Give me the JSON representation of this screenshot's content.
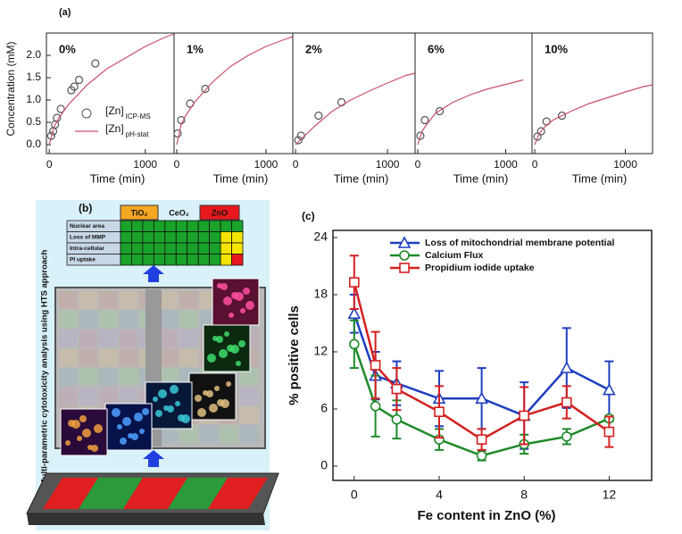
{
  "panel_labels": {
    "a": "(a)",
    "b": "(b)",
    "c": "(c)"
  },
  "chart_data": [
    {
      "type": "line",
      "label": "0%",
      "xlabel": "Time (min)",
      "ylabel": "Concentration (mM)",
      "xlim": [
        -30,
        1300
      ],
      "ylim": [
        -0.2,
        2.5
      ],
      "xticks": [
        0,
        1000
      ],
      "yticks": [
        0.0,
        0.5,
        1.0,
        1.5,
        2.0
      ],
      "legend": true,
      "series": [
        {
          "type": "scatter",
          "name": "[Zn]",
          "name_sub": "ICP-MS",
          "color": "#555555",
          "x": [
            20,
            40,
            60,
            80,
            120,
            230,
            260,
            310,
            480
          ],
          "values": [
            0.2,
            0.3,
            0.45,
            0.6,
            0.8,
            1.22,
            1.3,
            1.45,
            1.82
          ]
        },
        {
          "type": "line",
          "name": "[Zn]",
          "name_sub": "pH-stat",
          "color": "#c8506a",
          "x": [
            0,
            50,
            100,
            200,
            400,
            600,
            800,
            1000,
            1200,
            1300
          ],
          "values": [
            0,
            0.4,
            0.6,
            0.9,
            1.35,
            1.7,
            1.95,
            2.2,
            2.4,
            2.48
          ]
        }
      ]
    },
    {
      "type": "line",
      "label": "1%",
      "xlabel": "Time (min)",
      "xlim": [
        -30,
        1300
      ],
      "ylim": [
        -0.2,
        2.5
      ],
      "xticks": [
        0,
        1000
      ],
      "series": [
        {
          "type": "scatter",
          "color": "#555555",
          "x": [
            10,
            50,
            150,
            320
          ],
          "values": [
            0.25,
            0.55,
            0.92,
            1.25
          ]
        },
        {
          "type": "line",
          "color": "#c8506a",
          "x": [
            0,
            50,
            100,
            200,
            400,
            600,
            800,
            1000,
            1200,
            1300
          ],
          "values": [
            0,
            0.45,
            0.65,
            0.95,
            1.4,
            1.75,
            2.0,
            2.2,
            2.35,
            2.42
          ]
        }
      ]
    },
    {
      "type": "line",
      "label": "2%",
      "xlabel": "Time (min)",
      "xlim": [
        -30,
        1300
      ],
      "ylim": [
        -0.2,
        2.5
      ],
      "xticks": [
        0,
        1000
      ],
      "series": [
        {
          "type": "scatter",
          "color": "#555555",
          "x": [
            30,
            60,
            250,
            500
          ],
          "values": [
            0.1,
            0.2,
            0.65,
            0.95
          ]
        },
        {
          "type": "line",
          "color": "#c8506a",
          "x": [
            0,
            50,
            100,
            200,
            400,
            600,
            800,
            1000,
            1200,
            1300
          ],
          "values": [
            0,
            0.1,
            0.2,
            0.4,
            0.75,
            1.0,
            1.2,
            1.38,
            1.55,
            1.6
          ]
        }
      ]
    },
    {
      "type": "line",
      "label": "6%",
      "xlabel": "Time (min)",
      "xlim": [
        -30,
        1300
      ],
      "ylim": [
        -0.2,
        2.5
      ],
      "xticks": [
        0,
        1000
      ],
      "series": [
        {
          "type": "scatter",
          "color": "#555555",
          "x": [
            30,
            80,
            250
          ],
          "values": [
            0.2,
            0.55,
            0.75
          ]
        },
        {
          "type": "line",
          "color": "#c8506a",
          "x": [
            0,
            50,
            100,
            200,
            400,
            600,
            800,
            1000,
            1200
          ],
          "values": [
            0,
            0.3,
            0.45,
            0.7,
            0.95,
            1.12,
            1.25,
            1.35,
            1.45
          ]
        }
      ]
    },
    {
      "type": "line",
      "label": "10%",
      "xlabel": "Time (min)",
      "xlim": [
        -30,
        1300
      ],
      "ylim": [
        -0.2,
        2.5
      ],
      "xticks": [
        0,
        1000
      ],
      "series": [
        {
          "type": "scatter",
          "color": "#555555",
          "x": [
            30,
            70,
            130,
            300
          ],
          "values": [
            0.18,
            0.3,
            0.52,
            0.65
          ]
        },
        {
          "type": "line",
          "color": "#c8506a",
          "x": [
            0,
            50,
            100,
            200,
            400,
            600,
            800,
            1000,
            1200,
            1300
          ],
          "values": [
            0,
            0.25,
            0.38,
            0.55,
            0.75,
            0.92,
            1.05,
            1.18,
            1.3,
            1.34
          ]
        }
      ]
    },
    {
      "type": "line",
      "xlabel": "Fe content in ZnO (%)",
      "ylabel": "% positive cells",
      "xlim": [
        -1,
        14
      ],
      "ylim": [
        -1.5,
        24.75
      ],
      "xticks": [
        0,
        4,
        8,
        12
      ],
      "yticks": [
        0,
        6,
        12,
        18,
        24
      ],
      "legend": true,
      "series": [
        {
          "type": "line",
          "name": "Loss of mitochondrial membrane potential",
          "color": "#1f3fbf",
          "marker": "triangle",
          "x": [
            0,
            1,
            2,
            4,
            6,
            8,
            10,
            12
          ],
          "values": [
            16,
            9.5,
            8.7,
            7.1,
            7.1,
            5.3,
            10.3,
            8.0
          ],
          "errors": [
            2.0,
            2.5,
            2.3,
            2.9,
            3.2,
            3.5,
            4.2,
            3.0
          ]
        },
        {
          "type": "line",
          "name": "Calcium Flux",
          "color": "#1f8a2a",
          "marker": "circle",
          "x": [
            0,
            1,
            2,
            4,
            6,
            8,
            10,
            12
          ],
          "values": [
            12.8,
            6.3,
            4.9,
            2.8,
            1.1,
            2.3,
            3.1,
            5.0
          ],
          "errors": [
            2.5,
            3.2,
            2.0,
            1.1,
            0.5,
            1.0,
            0.8,
            0.3
          ]
        },
        {
          "type": "line",
          "name": "Propidium iodide uptake",
          "color": "#d42020",
          "marker": "square",
          "x": [
            0,
            1,
            2,
            4,
            6,
            8,
            10,
            12
          ],
          "values": [
            19.3,
            10.6,
            8.1,
            5.7,
            2.8,
            5.3,
            6.7,
            3.6
          ],
          "errors": [
            2.8,
            3.5,
            2.2,
            2.7,
            1.1,
            3.0,
            1.7,
            1.6
          ]
        }
      ]
    }
  ],
  "panel_b": {
    "vertical_title": "Multi-parametric cytotoxicity analysis using HTS approach",
    "columns": [
      "TiO₂",
      "CeO₂",
      "ZnO"
    ],
    "rows": [
      "Nuclear area",
      "Loss of MMP",
      "Intra-cellular",
      "PI uptake"
    ]
  }
}
